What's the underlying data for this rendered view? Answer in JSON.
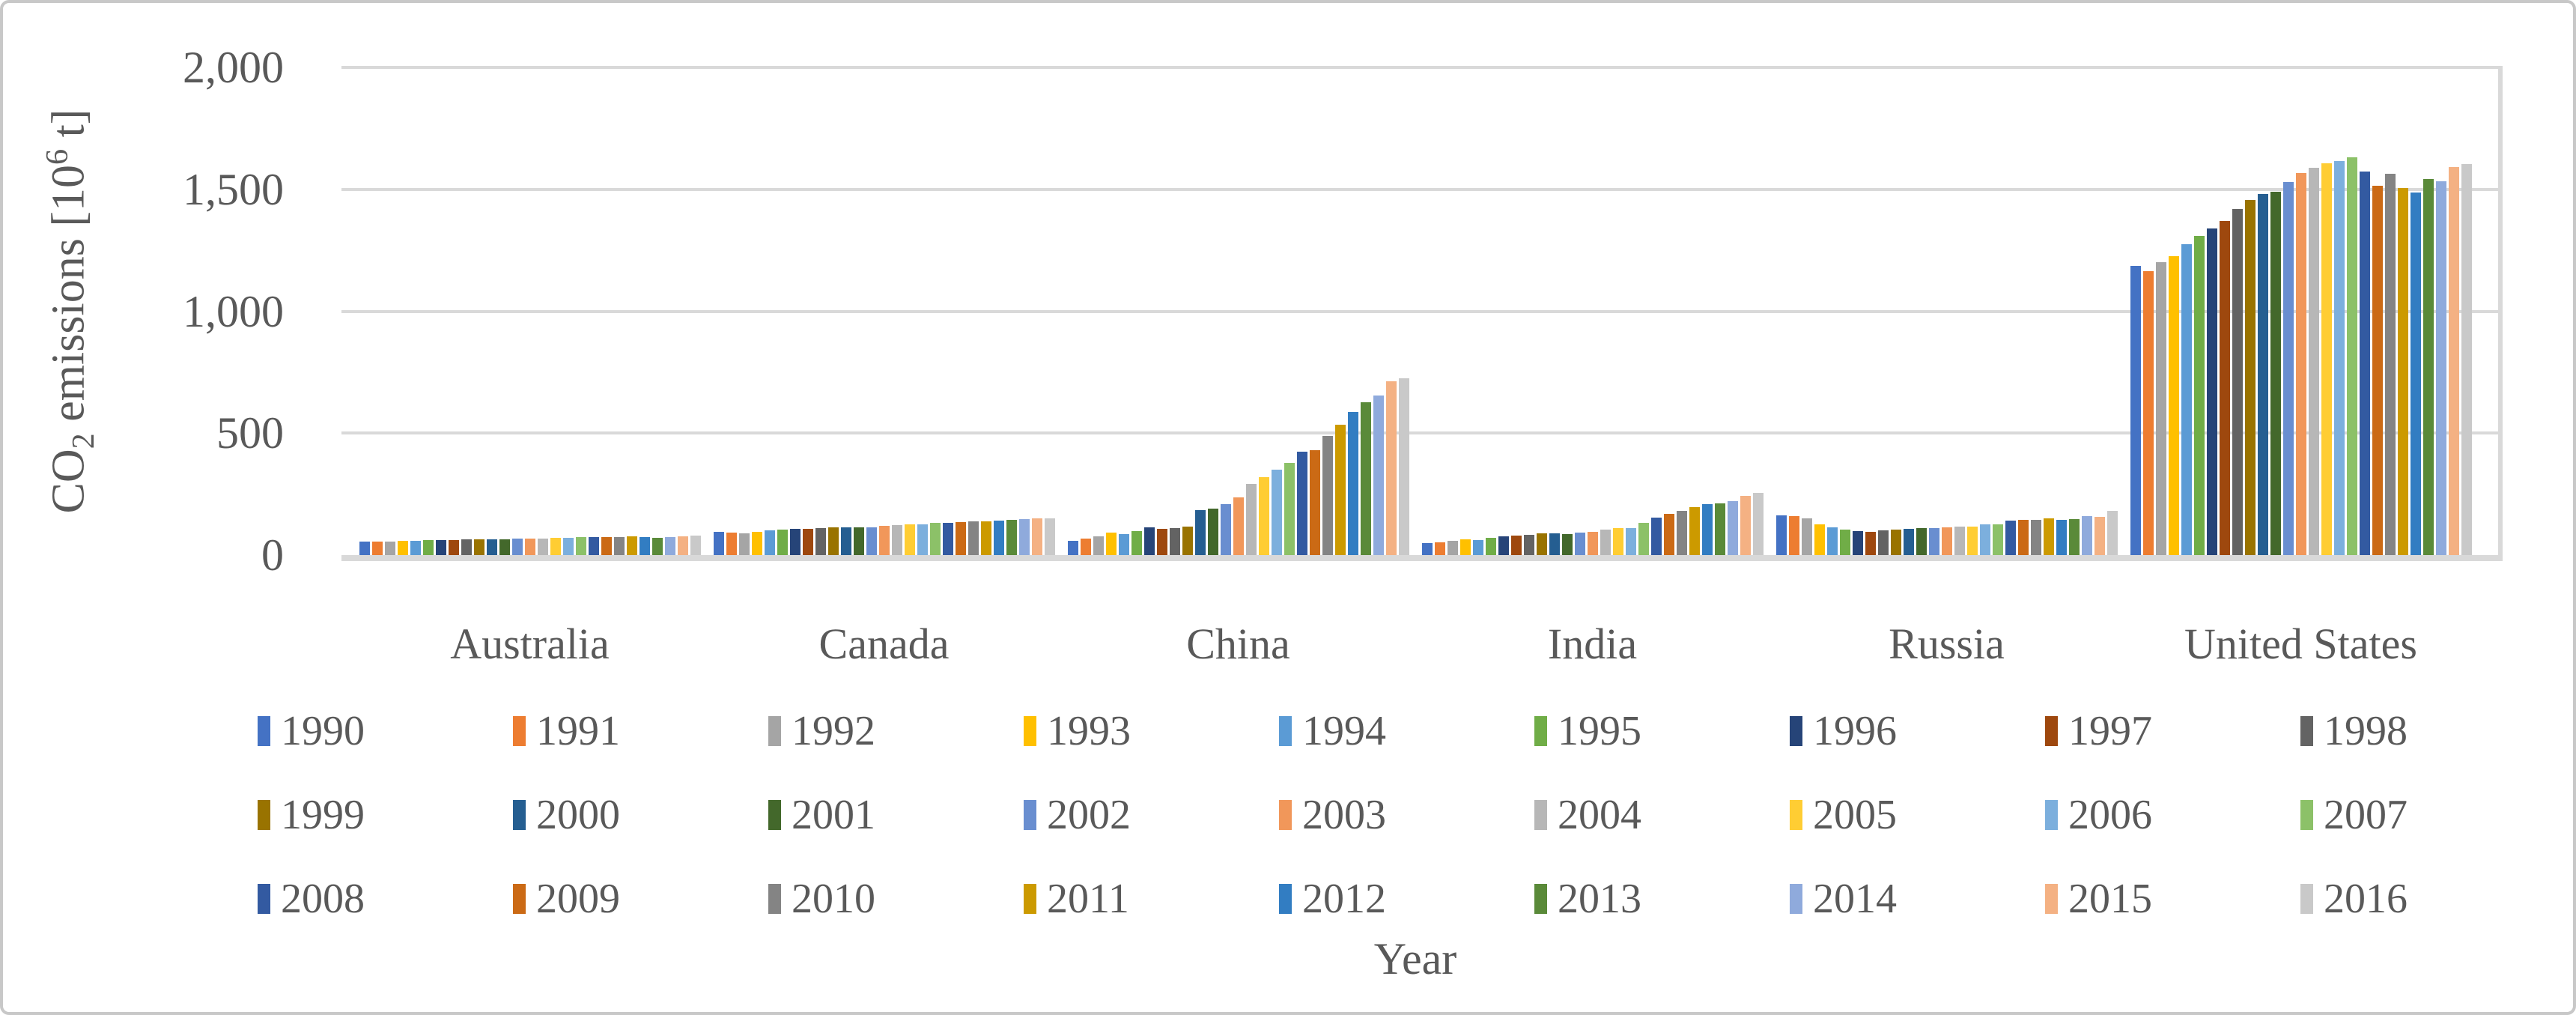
{
  "y_axis": {
    "title_co": "CO",
    "title_sub": "2",
    "title_mid": " emissions [10",
    "title_sup": "6",
    "title_end": " t]"
  },
  "x_axis": {
    "title": "Year"
  },
  "chart_data": {
    "type": "bar",
    "title": "",
    "xlabel": "Year",
    "ylabel": "CO2 emissions [10^6 t]",
    "ylim": [
      0,
      2000
    ],
    "grid": true,
    "legend_position": "bottom",
    "categories": [
      "Australia",
      "Canada",
      "China",
      "India",
      "Russia",
      "United States"
    ],
    "y_ticks": [
      {
        "label": "0",
        "value": 0
      },
      {
        "label": "500",
        "value": 500
      },
      {
        "label": "1,000",
        "value": 1000
      },
      {
        "label": "1,500",
        "value": 1500
      },
      {
        "label": "2,000",
        "value": 2000
      }
    ],
    "series": [
      {
        "name": "1990",
        "color": "#4472C4",
        "values": [
          55,
          95,
          59,
          49,
          163,
          1185
        ]
      },
      {
        "name": "1991",
        "color": "#ED7D31",
        "values": [
          54,
          92,
          67,
          52,
          160,
          1165
        ]
      },
      {
        "name": "1992",
        "color": "#A5A5A5",
        "values": [
          55,
          90,
          77,
          57,
          152,
          1200
        ]
      },
      {
        "name": "1993",
        "color": "#FFC000",
        "values": [
          57,
          95,
          93,
          64,
          127,
          1225
        ]
      },
      {
        "name": "1994",
        "color": "#5B9BD5",
        "values": [
          58,
          100,
          86,
          62,
          114,
          1275
        ]
      },
      {
        "name": "1995",
        "color": "#70AD47",
        "values": [
          60,
          104,
          97,
          72,
          104,
          1310
        ]
      },
      {
        "name": "1996",
        "color": "#264478",
        "values": [
          61,
          106,
          115,
          76,
          97,
          1340
        ]
      },
      {
        "name": "1997",
        "color": "#9E480E",
        "values": [
          62,
          108,
          109,
          79,
          94,
          1370
        ]
      },
      {
        "name": "1998",
        "color": "#636363",
        "values": [
          64,
          110,
          112,
          82,
          100,
          1420
        ]
      },
      {
        "name": "1999",
        "color": "#997300",
        "values": [
          65,
          113,
          116,
          88,
          104,
          1455
        ]
      },
      {
        "name": "2000",
        "color": "#255E91",
        "values": [
          66,
          115,
          185,
          89,
          107,
          1480
        ]
      },
      {
        "name": "2001",
        "color": "#43682B",
        "values": [
          66,
          113,
          192,
          87,
          110,
          1490
        ]
      },
      {
        "name": "2002",
        "color": "#698ED0",
        "values": [
          67,
          114,
          208,
          92,
          112,
          1530
        ]
      },
      {
        "name": "2003",
        "color": "#F1975A",
        "values": [
          68,
          121,
          236,
          94,
          115,
          1568
        ]
      },
      {
        "name": "2004",
        "color": "#B7B7B7",
        "values": [
          69,
          124,
          293,
          104,
          118,
          1589
        ]
      },
      {
        "name": "2005",
        "color": "#FFCD33",
        "values": [
          70,
          125,
          319,
          110,
          118,
          1607
        ]
      },
      {
        "name": "2006",
        "color": "#7CAFDD",
        "values": [
          71,
          126,
          350,
          112,
          127,
          1617
        ]
      },
      {
        "name": "2007",
        "color": "#8CC168",
        "values": [
          73,
          133,
          378,
          133,
          125,
          1630
        ]
      },
      {
        "name": "2008",
        "color": "#335AA1",
        "values": [
          74,
          132,
          423,
          153,
          140,
          1573
        ]
      },
      {
        "name": "2009",
        "color": "#CB6A15",
        "values": [
          74,
          135,
          431,
          168,
          143,
          1514
        ]
      },
      {
        "name": "2010",
        "color": "#848484",
        "values": [
          74,
          137,
          488,
          181,
          145,
          1564
        ]
      },
      {
        "name": "2011",
        "color": "#CC9A00",
        "values": [
          76,
          138,
          535,
          196,
          150,
          1506
        ]
      },
      {
        "name": "2012",
        "color": "#327DC2",
        "values": [
          75,
          140,
          586,
          209,
          145,
          1488
        ]
      },
      {
        "name": "2013",
        "color": "#5A8A39",
        "values": [
          72,
          143,
          627,
          212,
          149,
          1541
        ]
      },
      {
        "name": "2014",
        "color": "#8FAADC",
        "values": [
          73,
          146,
          654,
          221,
          159,
          1533
        ]
      },
      {
        "name": "2015",
        "color": "#F4B183",
        "values": [
          77,
          150,
          712,
          242,
          157,
          1591
        ]
      },
      {
        "name": "2016",
        "color": "#C9C9C9",
        "values": [
          79,
          152,
          726,
          255,
          180,
          1604
        ]
      }
    ]
  }
}
